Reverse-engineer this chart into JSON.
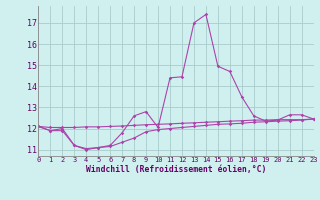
{
  "x": [
    0,
    1,
    2,
    3,
    4,
    5,
    6,
    7,
    8,
    9,
    10,
    11,
    12,
    13,
    14,
    15,
    16,
    17,
    18,
    19,
    20,
    21,
    22,
    23
  ],
  "line1": [
    12.1,
    11.9,
    12.0,
    11.2,
    11.05,
    11.1,
    11.2,
    11.8,
    12.6,
    12.8,
    12.05,
    14.4,
    14.45,
    17.0,
    17.4,
    14.95,
    14.7,
    13.5,
    12.6,
    12.35,
    12.4,
    12.65,
    12.65,
    12.45
  ],
  "line2": [
    12.1,
    12.05,
    12.05,
    12.05,
    12.08,
    12.08,
    12.1,
    12.12,
    12.15,
    12.18,
    12.2,
    12.22,
    12.25,
    12.27,
    12.3,
    12.32,
    12.35,
    12.37,
    12.4,
    12.4,
    12.42,
    12.42,
    12.42,
    12.45
  ],
  "line3": [
    12.1,
    11.9,
    11.9,
    11.2,
    11.0,
    11.1,
    11.15,
    11.35,
    11.55,
    11.85,
    11.95,
    12.0,
    12.05,
    12.1,
    12.15,
    12.2,
    12.22,
    12.25,
    12.3,
    12.32,
    12.35,
    12.37,
    12.4,
    12.45
  ],
  "line_color": "#aa44aa",
  "bg_color": "#d0f0f0",
  "grid_color": "#aacccc",
  "xlabel": "Windchill (Refroidissement éolien,°C)",
  "ylim": [
    10.7,
    17.8
  ],
  "xlim": [
    0,
    23
  ],
  "yticks": [
    11,
    12,
    13,
    14,
    15,
    16,
    17
  ],
  "xticks": [
    0,
    1,
    2,
    3,
    4,
    5,
    6,
    7,
    8,
    9,
    10,
    11,
    12,
    13,
    14,
    15,
    16,
    17,
    18,
    19,
    20,
    21,
    22,
    23
  ]
}
